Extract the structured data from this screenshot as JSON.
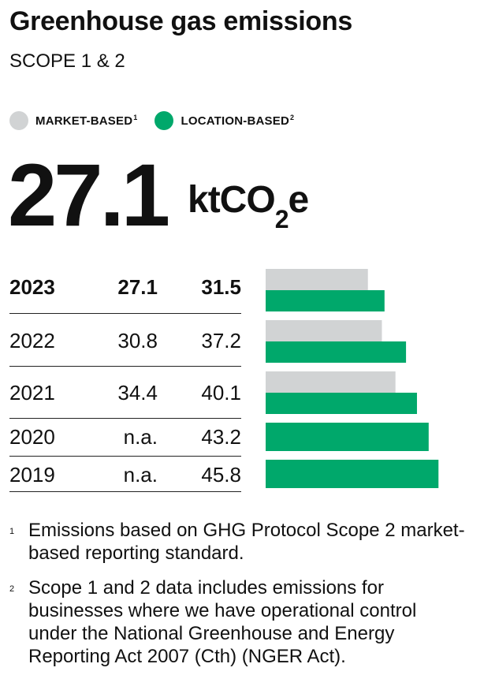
{
  "title": "Greenhouse gas emissions",
  "subtitle": "SCOPE 1 & 2",
  "legend": [
    {
      "label": "MARKET-BASED",
      "sup": "1",
      "color": "#d1d3d4"
    },
    {
      "label": "LOCATION-BASED",
      "sup": "2",
      "color": "#00a86b"
    }
  ],
  "headline": {
    "value": "27.1",
    "unit_prefix": "ktCO",
    "unit_sub": "2",
    "unit_suffix": "e"
  },
  "chart_data": {
    "type": "bar",
    "orientation": "horizontal",
    "categories": [
      "2023",
      "2022",
      "2021",
      "2020",
      "2019"
    ],
    "series": [
      {
        "name": "MARKET-BASED",
        "color": "#d1d3d4",
        "values": [
          27.1,
          30.8,
          34.4,
          null,
          null
        ],
        "labels": [
          "27.1",
          "30.8",
          "34.4",
          "n.a.",
          "n.a."
        ]
      },
      {
        "name": "LOCATION-BASED",
        "color": "#00a86b",
        "values": [
          31.5,
          37.2,
          40.1,
          43.2,
          45.8
        ],
        "labels": [
          "31.5",
          "37.2",
          "40.1",
          "43.2",
          "45.8"
        ]
      }
    ],
    "xlim": [
      0,
      47
    ],
    "grid": false
  },
  "footnotes": [
    {
      "num": "1",
      "text": "Emissions based on GHG Protocol Scope 2 market-based reporting standard."
    },
    {
      "num": "2",
      "text": "Scope 1 and 2 data includes emissions for businesses where we have operational control under the National Greenhouse and Energy Reporting Act 2007 (Cth) (NGER Act)."
    }
  ]
}
